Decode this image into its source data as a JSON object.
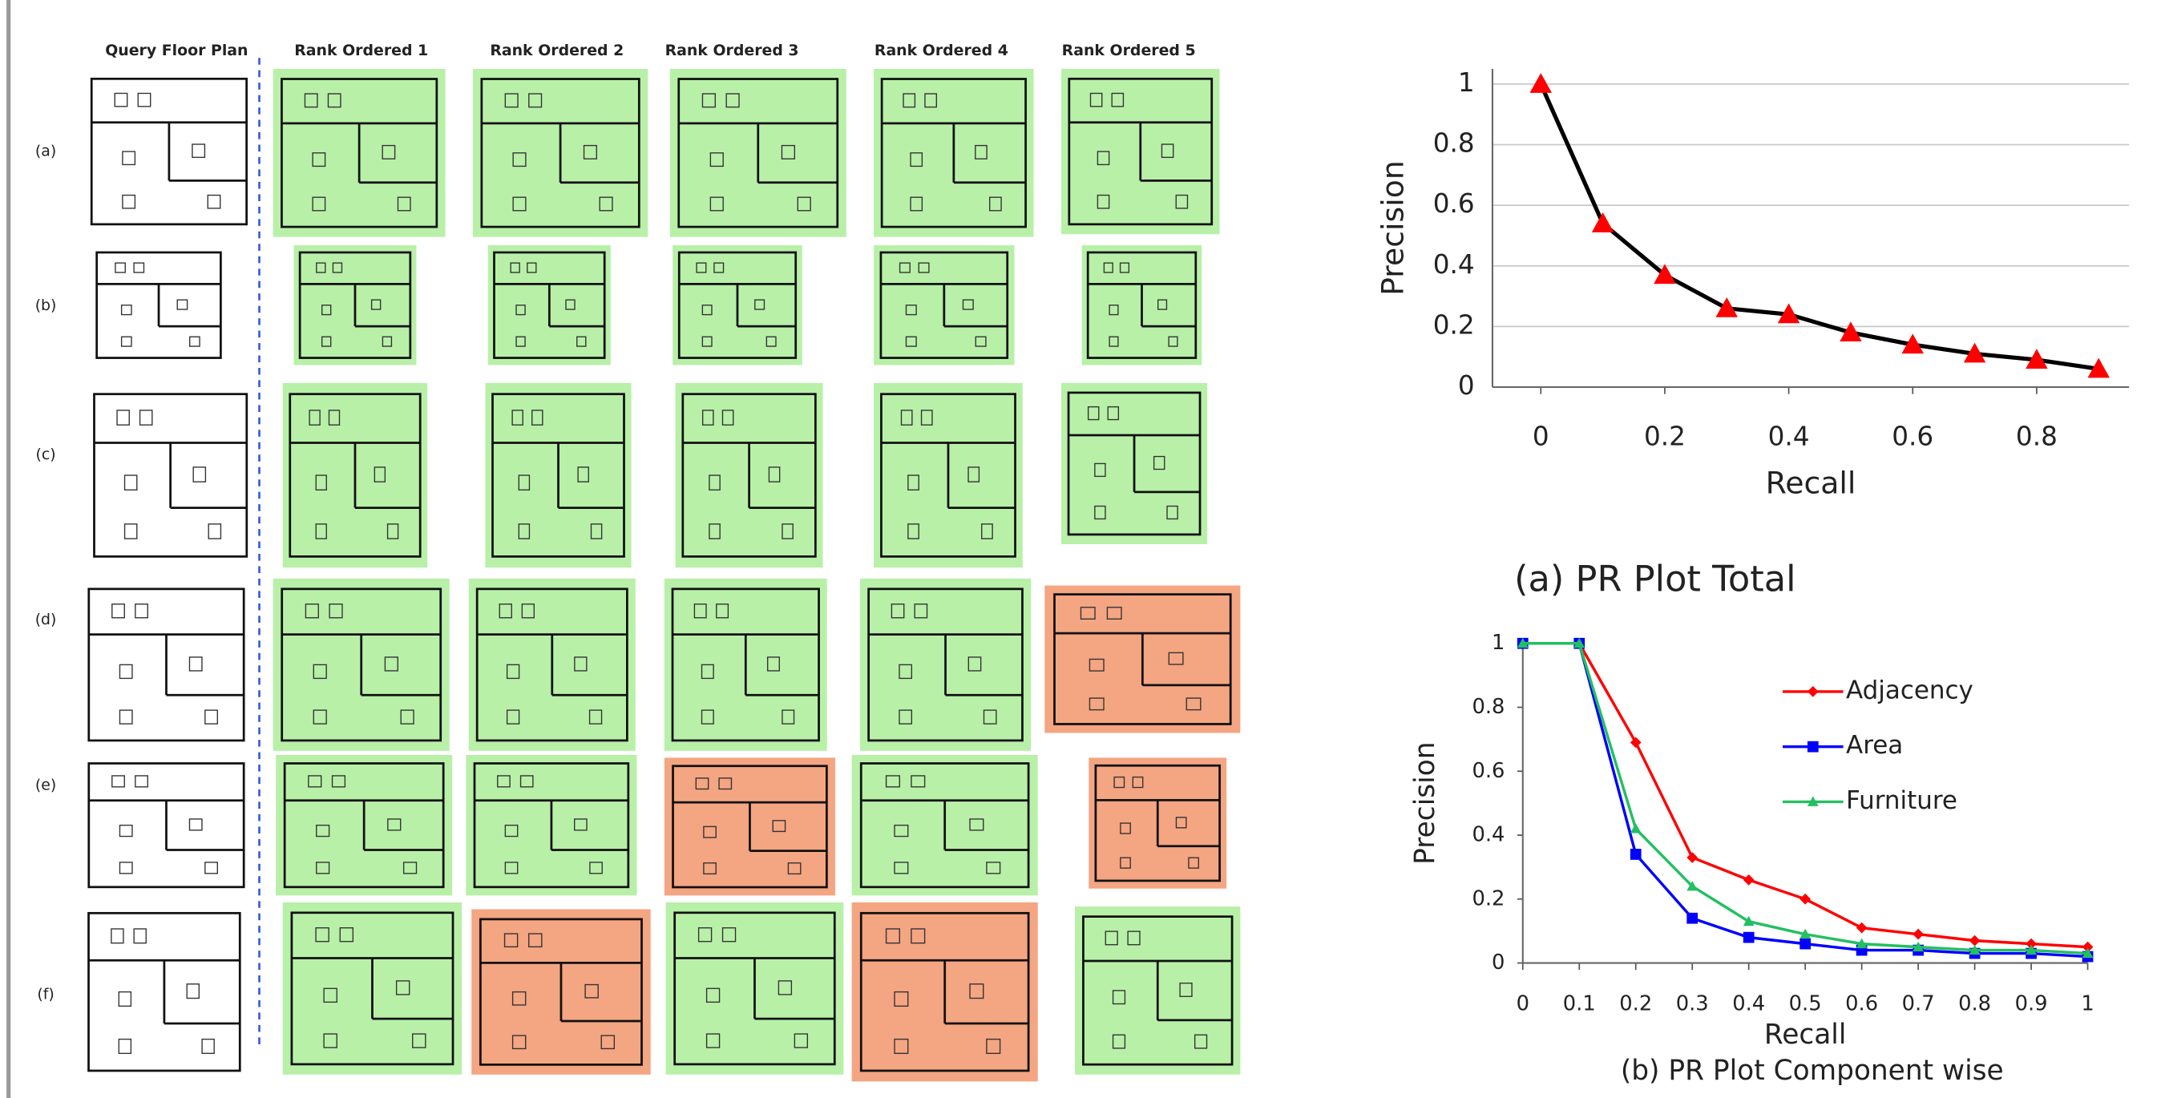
{
  "figure": {
    "column_headers": [
      "Query Floor Plan",
      "Rank Ordered 1",
      "Rank Ordered 2",
      "Rank Ordered 3",
      "Rank Ordered 4",
      "Rank Ordered 5"
    ],
    "row_labels": [
      "(a)",
      "(b)",
      "(c)",
      "(d)",
      "(e)",
      "(f)"
    ]
  },
  "chart_data": [
    {
      "type": "line",
      "title": "(a) PR Plot Total",
      "x_label": "Recall",
      "y_label": "Precision",
      "x": [
        0,
        0.1,
        0.2,
        0.3,
        0.4,
        0.5,
        0.6,
        0.7,
        0.8,
        0.9
      ],
      "values": [
        1,
        0.54,
        0.37,
        0.26,
        0.24,
        0.18,
        0.14,
        0.11,
        0.09,
        0.06
      ],
      "color": "#000000",
      "marker": "triangle",
      "marker_color": "#ff0000",
      "xlim": [
        -0.078,
        0.949
      ],
      "ylim": [
        0,
        1.05
      ],
      "xticks": [
        0,
        0.2,
        0.4,
        0.6,
        0.8
      ],
      "yticks": [
        0,
        0.2,
        0.4,
        0.6,
        0.8,
        1
      ],
      "grid": true
    },
    {
      "type": "line",
      "title": "(b) PR Plot Component wise",
      "x_label": "Recall",
      "y_label": "Precision",
      "x": [
        0,
        0.1,
        0.2,
        0.3,
        0.4,
        0.5,
        0.6,
        0.7,
        0.8,
        0.9,
        1
      ],
      "series": [
        {
          "name": "Adjacency",
          "color": "#ff0000",
          "marker": "diamond",
          "values": [
            1,
            1,
            0.69,
            0.33,
            0.26,
            0.2,
            0.11,
            0.09,
            0.07,
            0.06,
            0.05
          ]
        },
        {
          "name": "Area",
          "color": "#0000ff",
          "marker": "square",
          "values": [
            1,
            1,
            0.34,
            0.14,
            0.08,
            0.06,
            0.04,
            0.04,
            0.03,
            0.03,
            0.02
          ]
        },
        {
          "name": "Furniture",
          "color": "#22c060",
          "marker": "triangle",
          "values": [
            1,
            1,
            0.42,
            0.24,
            0.13,
            0.09,
            0.06,
            0.05,
            0.04,
            0.04,
            0.03
          ]
        }
      ],
      "xlim": [
        0,
        1
      ],
      "ylim": [
        0,
        1
      ],
      "xticks": [
        0,
        0.1,
        0.2,
        0.3,
        0.4,
        0.5,
        0.6,
        0.7,
        0.8,
        0.9,
        1
      ],
      "yticks": [
        0,
        0.2,
        0.4,
        0.6,
        0.8,
        1
      ],
      "grid": false,
      "legend": "upper right"
    }
  ]
}
